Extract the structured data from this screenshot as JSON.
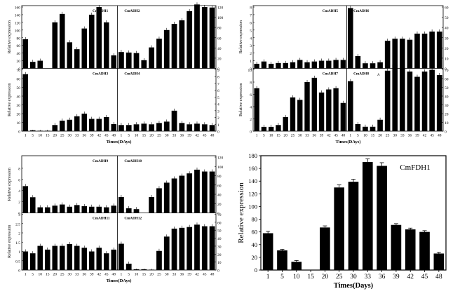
{
  "x_ticks": [
    "1",
    "5",
    "10",
    "15",
    "20",
    "25",
    "30",
    "33",
    "36",
    "39",
    "42",
    "45",
    "48"
  ],
  "panels": {
    "p1": {
      "ylabel": "Relative expression",
      "xlabel": "Times(DAys)",
      "top_left": {
        "title": "CmADH1",
        "ylim": [
          0,
          160
        ],
        "ticks": [
          "0",
          "20",
          "40",
          "60",
          "80",
          "100",
          "120",
          "140",
          "160"
        ],
        "values": [
          76,
          17,
          20,
          null,
          120,
          142,
          68,
          50,
          104,
          140,
          160,
          120,
          34
        ]
      },
      "top_right": {
        "title": "CmADH2",
        "ylim": [
          0,
          120
        ],
        "ticks": [
          "0",
          "20",
          "40",
          "60",
          "80",
          "100",
          "120"
        ],
        "values": [
          32,
          31,
          30,
          16,
          41,
          58,
          75,
          87,
          94,
          112,
          125,
          120,
          119
        ]
      },
      "bot_left": {
        "title": "CmADH3",
        "ylim": [
          0,
          70
        ],
        "ticks": [
          "0",
          "10",
          "20",
          "30",
          "40",
          "50",
          "60",
          "70"
        ],
        "values": [
          65,
          1,
          0.5,
          0.5,
          7,
          12,
          13,
          17,
          20,
          14,
          14,
          16,
          8
        ]
      },
      "bot_right": {
        "title": "CmADH4",
        "ylim": [
          0,
          9
        ],
        "ticks": [
          "0",
          "1",
          "2",
          "3",
          "4",
          "5",
          "6",
          "7",
          "8",
          "9"
        ],
        "values": [
          0.9,
          0.9,
          1,
          1.1,
          1,
          1.2,
          1.4,
          3,
          1.2,
          1,
          1.1,
          1,
          0.9
        ]
      }
    },
    "p2": {
      "ylabel": "Relative expression",
      "xlabel": "Times(DAys)",
      "top_left": {
        "title": "CmADH5",
        "ylim": [
          0,
          8
        ],
        "ticks": [
          "0",
          "1",
          "2",
          "3",
          "4",
          "5",
          "6",
          "7",
          "8"
        ],
        "values": [
          0.6,
          0.9,
          0.6,
          0.7,
          0.7,
          0.8,
          1.1,
          0.8,
          0.9,
          1,
          1,
          1.1,
          1.1
        ]
      },
      "top_right": {
        "title": "CmADH6",
        "ylim": [
          0,
          60
        ],
        "ticks": [
          "0",
          "10",
          "20",
          "30",
          "40",
          "50",
          "60"
        ],
        "values": [
          59,
          12,
          5,
          5,
          6,
          27,
          29,
          29,
          28,
          34,
          34,
          36,
          36
        ]
      },
      "bot_left": {
        "title": "CmADH7",
        "ylim": [
          0,
          10
        ],
        "ticks": [
          "0",
          "2",
          "4",
          "6",
          "8",
          "10"
        ],
        "values": [
          7,
          0.7,
          0.7,
          1,
          2.3,
          5.5,
          5.1,
          8,
          8.7,
          6.3,
          6.8,
          7,
          4.6
        ]
      },
      "bot_right": {
        "title": "CmADH8",
        "ylim": [
          0,
          70
        ],
        "ticks": [
          "0",
          "10",
          "20",
          "30",
          "40",
          "50",
          "60",
          "70"
        ],
        "values": [
          57,
          8,
          5,
          5,
          13,
          69,
          76,
          72,
          68,
          62,
          68,
          70,
          64
        ]
      },
      "annotation": "A"
    },
    "p3": {
      "ylabel": "Relative expression",
      "xlabel": "Times(DAys)",
      "top_left": {
        "title": "CmADH9",
        "ylim": [
          0,
          10
        ],
        "ticks": [
          "0",
          "2",
          "4",
          "6",
          "8"
        ],
        "values": [
          4.8,
          2.8,
          1,
          1,
          1.3,
          1.5,
          1.1,
          1.4,
          1.2,
          1.1,
          1.1,
          1,
          1.3
        ]
      },
      "top_right": {
        "title": "CmADH10",
        "ylim": [
          0,
          120
        ],
        "ticks": [
          "0",
          "20",
          "40",
          "60",
          "80",
          "100",
          "120"
        ],
        "values": [
          34,
          10,
          8,
          0,
          34,
          53,
          65,
          74,
          80,
          85,
          93,
          89,
          89
        ]
      },
      "bot_left": {
        "title": "CmADH11",
        "ylim": [
          0,
          3
        ],
        "ticks": [
          "0",
          "0.5",
          "1",
          "1.5",
          "2",
          "2.5",
          "3"
        ],
        "values": [
          1,
          0.9,
          1.3,
          1.1,
          1.3,
          1.3,
          1.4,
          1.3,
          1.2,
          1,
          1.2,
          0.9,
          1.1
        ]
      },
      "bot_right": {
        "title": "CmADH12",
        "ylim": [
          0,
          70
        ],
        "ticks": [
          "0",
          "10",
          "20",
          "30",
          "40",
          "50",
          "60",
          "70"
        ],
        "values": [
          33,
          8,
          1,
          1,
          0.5,
          24,
          42,
          52,
          53,
          54,
          57,
          55,
          55
        ]
      }
    }
  },
  "chart_data": {
    "type": "bar",
    "title": "CmFDH1",
    "xlabel": "Times(Days)",
    "ylabel": "Relative expression",
    "categories": [
      "1",
      "5",
      "10",
      "15",
      "20",
      "25",
      "30",
      "33",
      "36",
      "39",
      "42",
      "45",
      "48"
    ],
    "values": [
      58,
      31,
      13,
      0,
      67,
      130,
      139,
      170,
      164,
      71,
      64,
      60,
      26
    ],
    "errors": [
      3,
      1.5,
      2,
      0,
      2.5,
      4,
      4,
      5,
      5,
      2,
      2,
      2,
      2
    ],
    "ylim": [
      0,
      180
    ],
    "yticks": [
      "0",
      "20",
      "40",
      "60",
      "80",
      "100",
      "120",
      "140",
      "160",
      "180"
    ]
  },
  "colors": {
    "bar": "#000000",
    "frame": "#000000",
    "background": "#ffffff"
  }
}
